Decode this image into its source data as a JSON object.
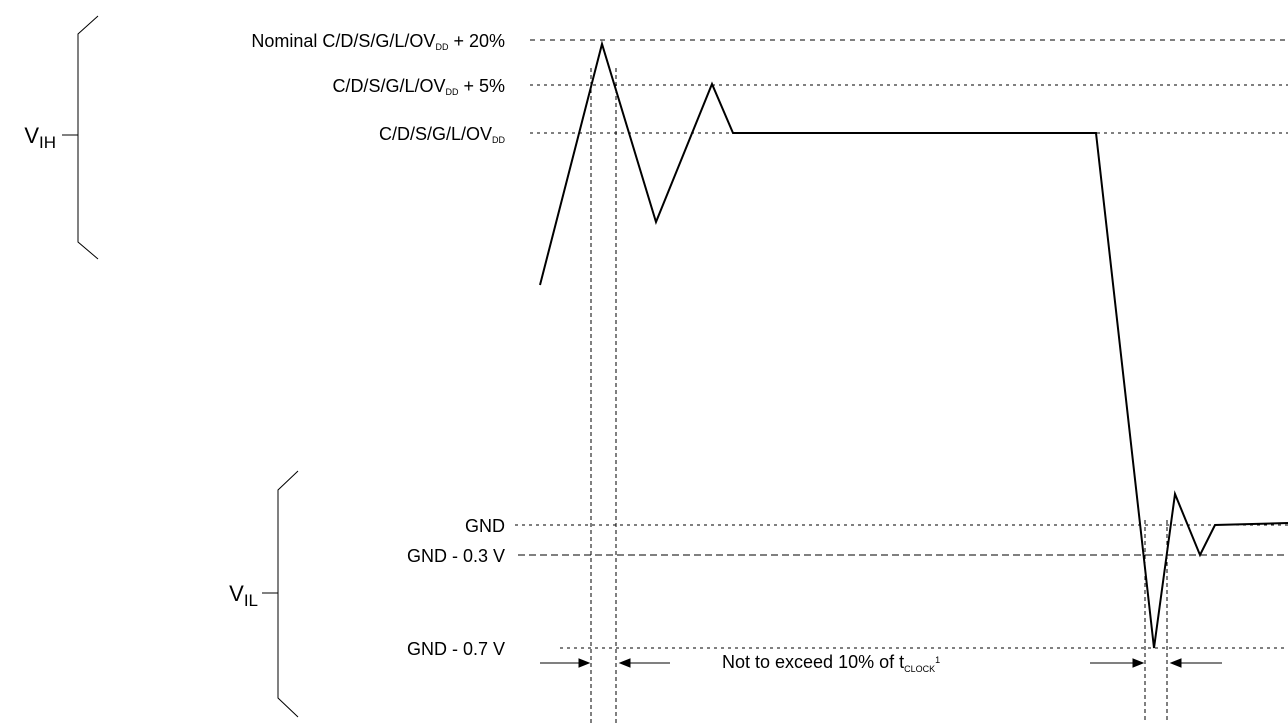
{
  "labels": {
    "vih": {
      "main": "V",
      "sub": "IH"
    },
    "vil": {
      "main": "V",
      "sub": "IL"
    },
    "level_nominal": {
      "pre": "Nominal C/D/S/G/L/OV",
      "sub": "DD",
      "post": " + 20%"
    },
    "level_plus5": {
      "pre": "C/D/S/G/L/OV",
      "sub": "DD",
      "post": " + 5%"
    },
    "level_vdd": {
      "pre": "C/D/S/G/L/OV",
      "sub": "DD",
      "post": ""
    },
    "gnd": "GND",
    "gnd_minus_03": "GND - 0.3 V",
    "gnd_minus_07": "GND - 0.7 V",
    "note": {
      "pre": "Not to exceed 10% of t",
      "sub": "CLOCK",
      "sup": "1"
    }
  },
  "colors": {
    "line": "#000000",
    "background": "#ffffff"
  }
}
